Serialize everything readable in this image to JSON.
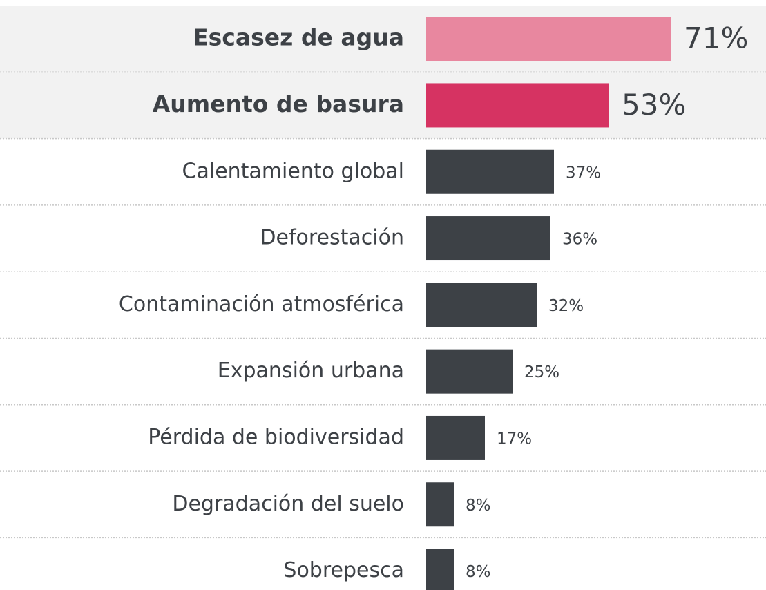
{
  "chart_data": {
    "type": "bar",
    "categories": [
      "Escasez de agua",
      "Aumento de basura",
      "Calentamiento global",
      "Deforestación",
      "Contaminación atmosférica",
      "Expansión urbana",
      "Pérdida de biodiversidad",
      "Degradación del suelo",
      "Sobrepesca"
    ],
    "values": [
      71,
      53,
      37,
      36,
      32,
      25,
      17,
      8,
      8
    ],
    "value_labels": [
      "71%",
      "53%",
      "37%",
      "36%",
      "32%",
      "25%",
      "17%",
      "8%",
      "8%"
    ],
    "colors": [
      "#e8879f",
      "#d63362",
      "#3d4146",
      "#3d4146",
      "#3d4146",
      "#3d4146",
      "#3d4146",
      "#3d4146",
      "#3d4146"
    ],
    "highlight": [
      0,
      1
    ]
  }
}
